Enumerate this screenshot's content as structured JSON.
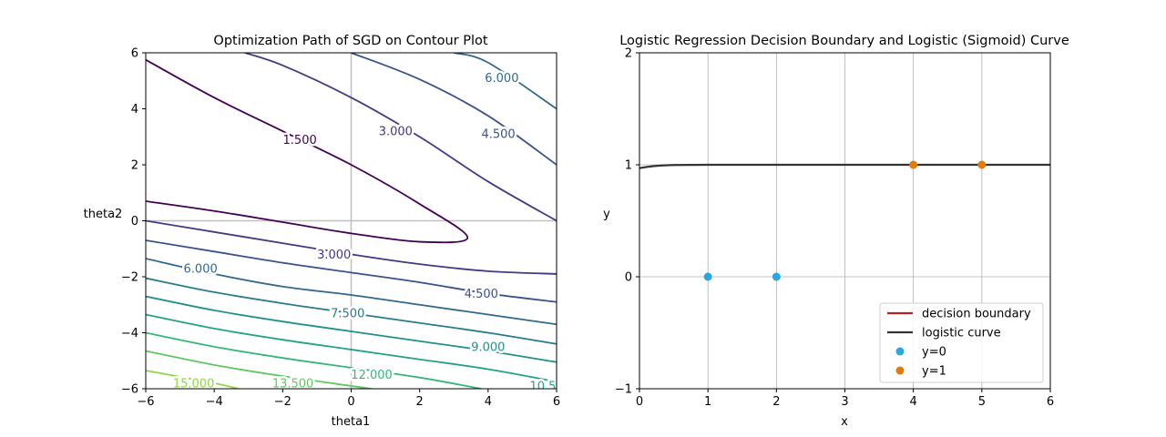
{
  "chart_data": [
    {
      "type": "contour",
      "title": "Optimization Path of SGD on Contour Plot",
      "xlabel": "theta1",
      "ylabel": "theta2",
      "xlim": [
        -6,
        6
      ],
      "ylim": [
        -6,
        6
      ],
      "xticks": [
        -6,
        -4,
        -2,
        0,
        2,
        4,
        6
      ],
      "yticks": [
        -6,
        -4,
        -2,
        0,
        2,
        4,
        6
      ],
      "xtick_labels": [
        "−6",
        "−4",
        "−2",
        "0",
        "2",
        "4",
        "6"
      ],
      "ytick_labels": [
        "−6",
        "−4",
        "−2",
        "0",
        "2",
        "4",
        "6"
      ],
      "grid": false,
      "reference_lines": {
        "x": 0,
        "y": 0,
        "color": "#c0c0c0"
      },
      "levels": [
        {
          "value": 1.5,
          "label": "1.500",
          "color": "#440154",
          "paths": [
            [
              [
                -6,
                5.75
              ],
              [
                -4,
                4.4
              ],
              [
                -2,
                3.2
              ],
              [
                0,
                2.0
              ],
              [
                2,
                0.6
              ],
              [
                3.4,
                -0.6
              ],
              [
                2,
                -0.75
              ],
              [
                0,
                -0.45
              ],
              [
                -2,
                -0.05
              ],
              [
                -4,
                0.35
              ],
              [
                -6,
                0.7
              ]
            ]
          ]
        },
        {
          "value": 3.0,
          "label": "3.000",
          "color": "#443983",
          "paths": [
            [
              [
                -3.1,
                6
              ],
              [
                -2,
                5.55
              ],
              [
                0,
                4.4
              ],
              [
                2,
                3.0
              ],
              [
                4,
                1.4
              ],
              [
                6,
                0
              ]
            ],
            [
              [
                -6,
                0
              ],
              [
                -4,
                -0.4
              ],
              [
                -2,
                -0.8
              ],
              [
                0,
                -1.2
              ],
              [
                2,
                -1.55
              ],
              [
                4,
                -1.8
              ],
              [
                6,
                -1.9
              ]
            ]
          ]
        },
        {
          "value": 4.5,
          "label": "4.500",
          "color": "#3b528b",
          "paths": [
            [
              [
                0,
                6
              ],
              [
                2,
                5.05
              ],
              [
                4,
                3.75
              ],
              [
                6,
                2.0
              ]
            ],
            [
              [
                -6,
                -0.7
              ],
              [
                -4,
                -1.1
              ],
              [
                -2,
                -1.5
              ],
              [
                0,
                -1.85
              ],
              [
                2,
                -2.2
              ],
              [
                4,
                -2.6
              ],
              [
                6,
                -2.9
              ]
            ]
          ]
        },
        {
          "value": 6.0,
          "label": "6.000",
          "color": "#31688e",
          "paths": [
            [
              [
                3.0,
                6
              ],
              [
                4,
                5.65
              ],
              [
                6,
                4.0
              ]
            ],
            [
              [
                -6,
                -1.35
              ],
              [
                -4,
                -1.9
              ],
              [
                -2,
                -2.35
              ],
              [
                0,
                -2.65
              ],
              [
                2,
                -3.0
              ],
              [
                4,
                -3.35
              ],
              [
                6,
                -3.7
              ]
            ]
          ]
        },
        {
          "value": 7.5,
          "label": "7.500",
          "color": "#287c8e",
          "paths": [
            [
              [
                -6,
                -2.05
              ],
              [
                -4,
                -2.55
              ],
              [
                -2,
                -2.95
              ],
              [
                0,
                -3.3
              ],
              [
                2,
                -3.65
              ],
              [
                4,
                -4.0
              ],
              [
                6,
                -4.4
              ]
            ]
          ]
        },
        {
          "value": 9.0,
          "label": "9.000",
          "color": "#21918c",
          "paths": [
            [
              [
                -6,
                -2.7
              ],
              [
                -4,
                -3.2
              ],
              [
                -2,
                -3.6
              ],
              [
                0,
                -3.95
              ],
              [
                2,
                -4.3
              ],
              [
                4,
                -4.65
              ],
              [
                6,
                -5.05
              ]
            ]
          ]
        },
        {
          "value": 10.5,
          "label": "10.5",
          "color": "#20a486",
          "paths": [
            [
              [
                -6,
                -3.35
              ],
              [
                -4,
                -3.85
              ],
              [
                -2,
                -4.25
              ],
              [
                0,
                -4.6
              ],
              [
                2,
                -4.95
              ],
              [
                4,
                -5.3
              ],
              [
                6,
                -5.75
              ]
            ]
          ]
        },
        {
          "value": 12.0,
          "label": "12.000",
          "color": "#35b779",
          "paths": [
            [
              [
                -6,
                -4.0
              ],
              [
                -4,
                -4.5
              ],
              [
                -2,
                -4.9
              ],
              [
                0,
                -5.25
              ],
              [
                2,
                -5.6
              ],
              [
                3.8,
                -6
              ]
            ]
          ]
        },
        {
          "value": 13.5,
          "label": "13.500",
          "color": "#5ec962",
          "paths": [
            [
              [
                -6,
                -4.65
              ],
              [
                -4,
                -5.15
              ],
              [
                -2,
                -5.55
              ],
              [
                0,
                -5.9
              ],
              [
                0.6,
                -6
              ]
            ]
          ]
        },
        {
          "value": 15.0,
          "label": "15.000",
          "color": "#90d743",
          "paths": [
            [
              [
                -6,
                -5.35
              ],
              [
                -4,
                -5.8
              ],
              [
                -3.3,
                -6
              ]
            ]
          ]
        }
      ],
      "labels": [
        {
          "text": "1.500",
          "x": -1.5,
          "y": 2.9,
          "color": "#440154"
        },
        {
          "text": "3.000",
          "x": 1.3,
          "y": 3.2,
          "color": "#443983"
        },
        {
          "text": "4.500",
          "x": 4.3,
          "y": 3.1,
          "color": "#3b528b"
        },
        {
          "text": "6.000",
          "x": 4.4,
          "y": 5.1,
          "color": "#31688e"
        },
        {
          "text": "3.000",
          "x": -0.5,
          "y": -1.2,
          "color": "#443983"
        },
        {
          "text": "6.000",
          "x": -4.4,
          "y": -1.7,
          "color": "#31688e"
        },
        {
          "text": "4.500",
          "x": 3.8,
          "y": -2.6,
          "color": "#3b528b"
        },
        {
          "text": "7.500",
          "x": -0.1,
          "y": -3.3,
          "color": "#287c8e"
        },
        {
          "text": "9.000",
          "x": 4.0,
          "y": -4.5,
          "color": "#21918c"
        },
        {
          "text": "12.000",
          "x": 0.6,
          "y": -5.5,
          "color": "#35b779"
        },
        {
          "text": "13.500",
          "x": -1.7,
          "y": -5.8,
          "color": "#5ec962"
        },
        {
          "text": "10.5",
          "x": 5.6,
          "y": -5.9,
          "color": "#20a486"
        },
        {
          "text": "15.000",
          "x": -4.6,
          "y": -5.8,
          "color": "#90d743"
        }
      ]
    },
    {
      "type": "line+scatter",
      "title": "Logistic Regression Decision Boundary and Logistic (Sigmoid) Curve",
      "xlabel": "x",
      "ylabel": "y",
      "xlim": [
        0,
        6
      ],
      "ylim": [
        -1,
        2
      ],
      "xticks": [
        0,
        1,
        2,
        3,
        4,
        5,
        6
      ],
      "yticks": [
        -1,
        0,
        1,
        2
      ],
      "xtick_labels": [
        "0",
        "1",
        "2",
        "3",
        "4",
        "5",
        "6"
      ],
      "ytick_labels": [
        "−1",
        "0",
        "1",
        "2"
      ],
      "grid": true,
      "legend_position": "bottom-right",
      "series": [
        {
          "name": "decision boundary",
          "kind": "line",
          "color": "#b22222",
          "x": [],
          "y": []
        },
        {
          "name": "logistic curve",
          "kind": "line",
          "color": "#333333",
          "x": [
            0,
            0.1,
            0.2,
            0.3,
            0.4,
            0.5,
            0.75,
            1,
            2,
            3,
            4,
            5,
            6
          ],
          "y": [
            0.97,
            0.98,
            0.988,
            0.993,
            0.996,
            0.998,
            0.999,
            1,
            1,
            1,
            1,
            1,
            1
          ]
        },
        {
          "name": "y=0",
          "kind": "scatter",
          "color": "#29a8e0",
          "x": [
            1,
            2
          ],
          "y": [
            0,
            0
          ]
        },
        {
          "name": "y=1",
          "kind": "scatter",
          "color": "#e07b10",
          "x": [
            4,
            5
          ],
          "y": [
            1,
            1
          ]
        }
      ]
    }
  ]
}
